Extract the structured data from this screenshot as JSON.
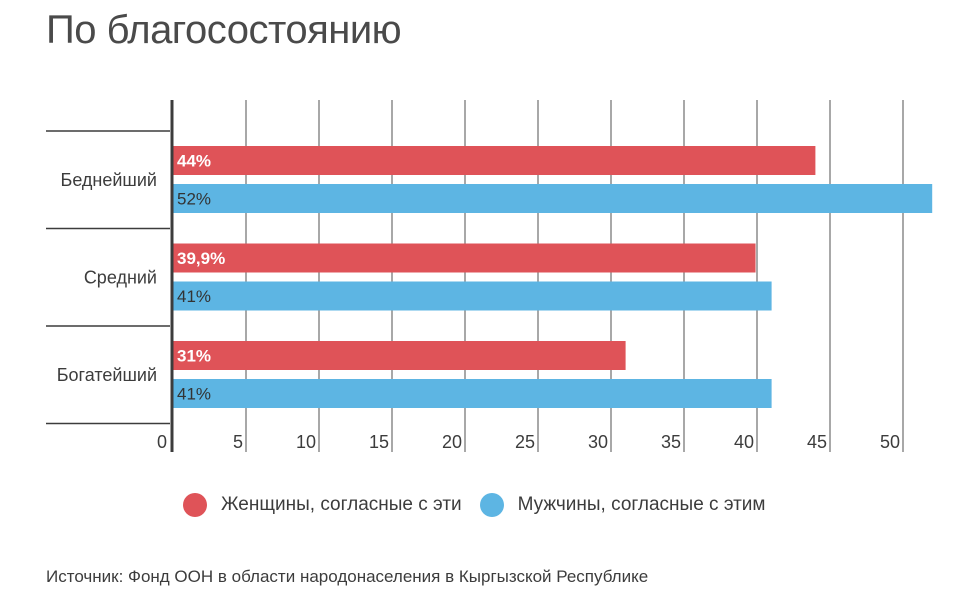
{
  "title": "По благосостоянию",
  "source": "Источник: Фонд ООН в области народонаселения в Кыргызской Республике",
  "colors": {
    "women": "#df5358",
    "men": "#5db5e3",
    "grid": "#7a7a7a",
    "axis": "#3c3c3c",
    "text": "#3c3c3c"
  },
  "chart_data": {
    "type": "bar",
    "orientation": "horizontal",
    "categories": [
      "Беднейший",
      "Средний",
      "Богатейший"
    ],
    "series": [
      {
        "name": "Женщины, согласные с эти",
        "color": "#df5358",
        "values": [
          44,
          39.9,
          31
        ],
        "labels": [
          "44%",
          "39,9%",
          "31%"
        ]
      },
      {
        "name": "Мужчины, согласные с этим",
        "color": "#5db5e3",
        "values": [
          52,
          41,
          41
        ],
        "labels": [
          "52%",
          "41%",
          "41%"
        ]
      }
    ],
    "x_ticks": [
      "0",
      "5",
      "10",
      "15",
      "20",
      "25",
      "30",
      "35",
      "40",
      "45",
      "50"
    ],
    "xlim": [
      0,
      52.5
    ],
    "grid": true,
    "legend_position": "bottom"
  }
}
